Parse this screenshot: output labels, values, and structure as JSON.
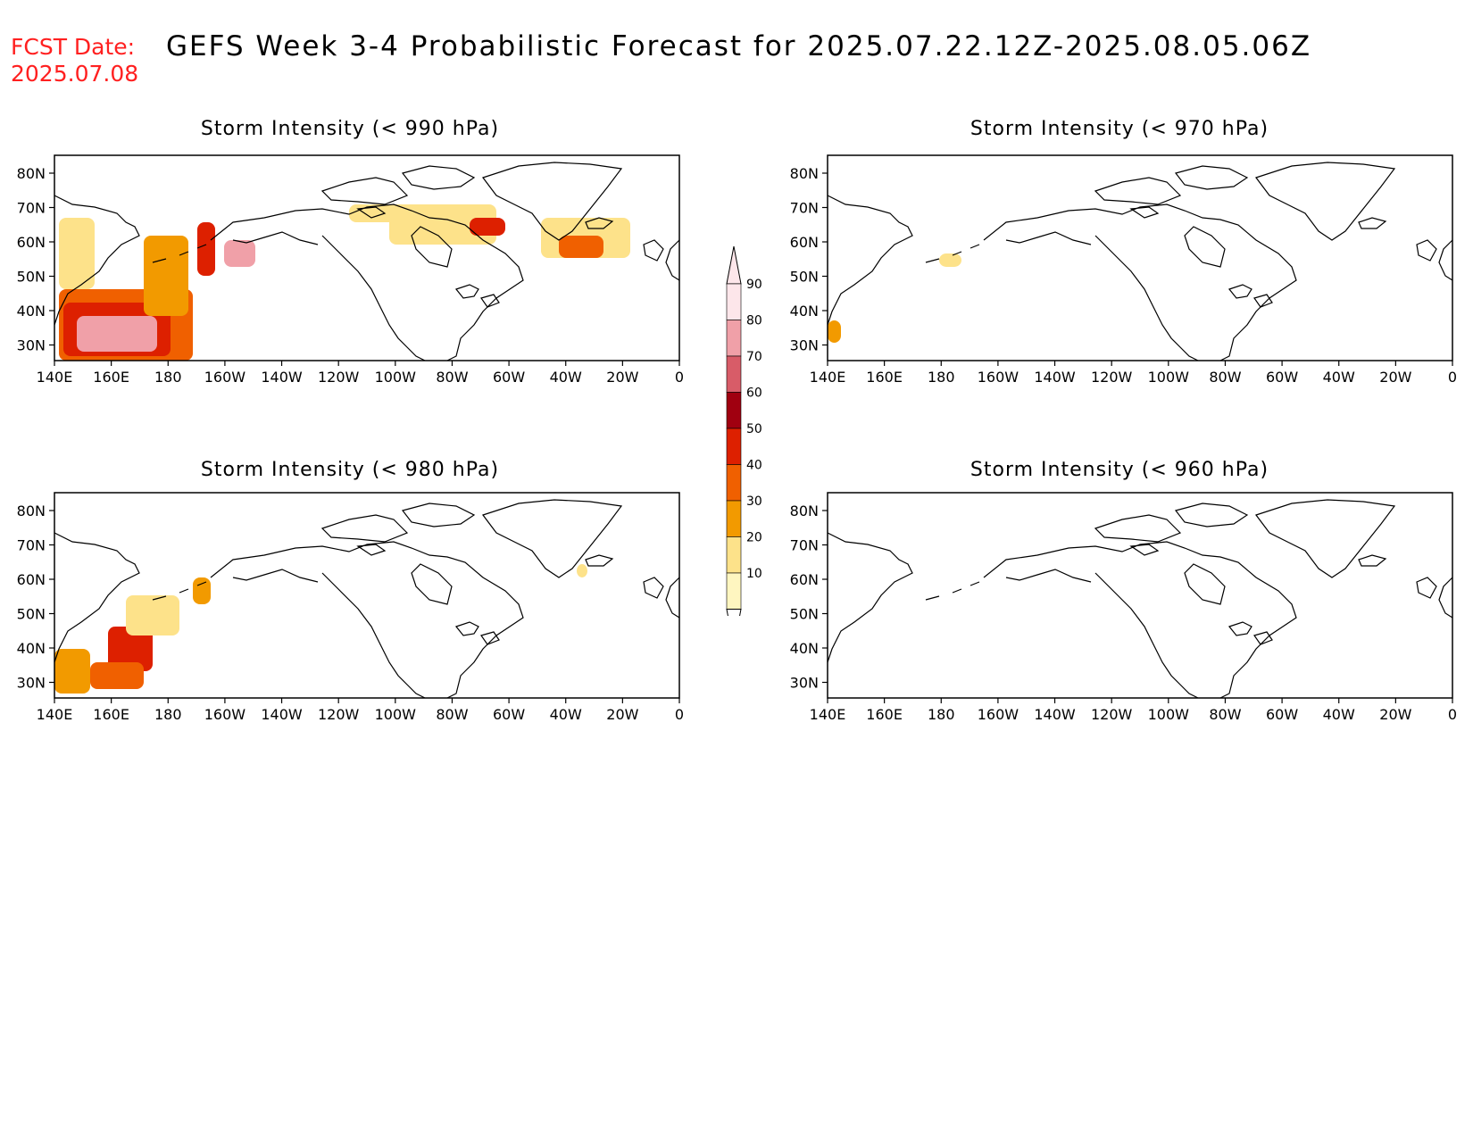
{
  "header": {
    "fcst_label": "FCST Date:",
    "fcst_date": "2025.07.08",
    "title": "GEFS Week 3-4 Probabilistic Forecast for 2025.07.22.12Z-2025.08.05.06Z"
  },
  "axes": {
    "lat_labels": [
      "80N",
      "70N",
      "60N",
      "50N",
      "40N",
      "30N"
    ],
    "lon_labels": [
      "140E",
      "160E",
      "180",
      "160W",
      "140W",
      "120W",
      "100W",
      "80W",
      "60W",
      "40W",
      "20W",
      "0"
    ]
  },
  "panels": [
    {
      "title": "Storm Intensity (< 990 hPa)"
    },
    {
      "title": "Storm Intensity (< 970 hPa)"
    },
    {
      "title": "Storm Intensity (< 980 hPa)"
    },
    {
      "title": "Storm Intensity (< 960 hPa)"
    }
  ],
  "colorbar": {
    "labels": [
      "90",
      "80",
      "70",
      "60",
      "50",
      "40",
      "30",
      "20",
      "10"
    ],
    "colors": [
      "#fde6ea",
      "#f0a0a8",
      "#d85c68",
      "#a00010",
      "#dd2000",
      "#f06000",
      "#f29a00",
      "#fde28a",
      "#fef6c0"
    ]
  }
}
